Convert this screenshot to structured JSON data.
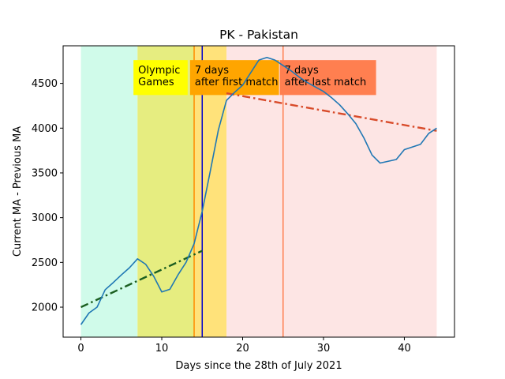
{
  "chart_data": {
    "type": "line",
    "title": "PK - Pakistan",
    "xlabel": "Days since the 28th of July 2021",
    "ylabel": "Current MA - Previous MA",
    "xlim": [
      -2.2,
      46.2
    ],
    "ylim": [
      1665,
      4920
    ],
    "x_ticks": [
      0,
      10,
      20,
      30,
      40
    ],
    "y_ticks": [
      2000,
      2500,
      3000,
      3500,
      4000,
      4500
    ],
    "grid": false,
    "series": [
      {
        "color": "#1f77b4",
        "x": [
          0,
          1,
          2,
          3,
          4,
          5,
          6,
          7,
          8,
          9,
          10,
          11,
          12,
          13,
          14,
          15,
          16,
          17,
          18,
          19,
          20,
          21,
          22,
          23,
          24,
          25,
          26,
          27,
          28,
          29,
          30,
          31,
          32,
          33,
          34,
          35,
          36,
          37,
          38,
          39,
          40,
          41,
          42,
          43,
          44
        ],
        "y": [
          1805,
          1935,
          2000,
          2195,
          2275,
          2360,
          2440,
          2540,
          2480,
          2345,
          2170,
          2200,
          2360,
          2500,
          2710,
          3070,
          3520,
          3980,
          4310,
          4400,
          4480,
          4620,
          4760,
          4790,
          4760,
          4700,
          4640,
          4570,
          4510,
          4460,
          4410,
          4340,
          4260,
          4160,
          4050,
          3890,
          3700,
          3610,
          3630,
          3650,
          3760,
          3790,
          3820,
          3940,
          4000
        ]
      }
    ],
    "trend_lines": [
      {
        "color": "#1b5e20",
        "x": [
          0,
          15
        ],
        "y": [
          2000,
          2630
        ]
      },
      {
        "color": "#d84b2a",
        "x": [
          18,
          44
        ],
        "y": [
          4390,
          3970
        ]
      }
    ],
    "shaded_regions": [
      {
        "x0": 0,
        "x1": 7,
        "color": "#d0fbea"
      },
      {
        "x0": 7,
        "x1": 14,
        "color": "#e6ed80"
      },
      {
        "x0": 14,
        "x1": 18,
        "color": "#ffe27a"
      },
      {
        "x0": 18,
        "x1": 44,
        "color": "#fde5e4"
      }
    ],
    "vertical_lines": [
      {
        "x": 14,
        "color": "#ff8c00"
      },
      {
        "x": 15,
        "color": "#0000cd"
      },
      {
        "x": 25,
        "color": "#ff7f50"
      }
    ],
    "annotations": [
      {
        "lines": [
          "Olympic",
          "Games"
        ],
        "x": 6.5,
        "y_top": 4760,
        "y_bottom": 4370,
        "x_end": 13.2,
        "bg": "#ffff00"
      },
      {
        "lines": [
          "7 days",
          "after first match"
        ],
        "x": 13.5,
        "y_top": 4760,
        "y_bottom": 4370,
        "x_end": 24.5,
        "bg": "#ffa500"
      },
      {
        "lines": [
          "7 days",
          "after last match"
        ],
        "x": 24.6,
        "y_top": 4760,
        "y_bottom": 4370,
        "x_end": 36.5,
        "bg": "#ff7f50"
      }
    ]
  }
}
